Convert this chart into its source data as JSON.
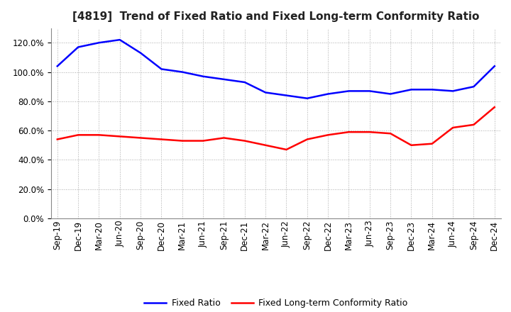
{
  "title": "[4819]  Trend of Fixed Ratio and Fixed Long-term Conformity Ratio",
  "x_labels": [
    "Sep-19",
    "Dec-19",
    "Mar-20",
    "Jun-20",
    "Sep-20",
    "Dec-20",
    "Mar-21",
    "Jun-21",
    "Sep-21",
    "Dec-21",
    "Mar-22",
    "Jun-22",
    "Sep-22",
    "Dec-22",
    "Mar-23",
    "Jun-23",
    "Sep-23",
    "Dec-23",
    "Mar-24",
    "Jun-24",
    "Sep-24",
    "Dec-24"
  ],
  "fixed_ratio": [
    1.04,
    1.17,
    1.2,
    1.22,
    1.13,
    1.02,
    1.0,
    0.97,
    0.95,
    0.93,
    0.86,
    0.84,
    0.82,
    0.85,
    0.87,
    0.87,
    0.85,
    0.88,
    0.88,
    0.87,
    0.9,
    1.04
  ],
  "fixed_lt_ratio": [
    0.54,
    0.57,
    0.57,
    0.56,
    0.55,
    0.54,
    0.53,
    0.53,
    0.55,
    0.53,
    0.5,
    0.47,
    0.54,
    0.57,
    0.59,
    0.59,
    0.58,
    0.5,
    0.51,
    0.62,
    0.64,
    0.76
  ],
  "fixed_ratio_color": "#0000FF",
  "fixed_lt_ratio_color": "#FF0000",
  "ylim": [
    0.0,
    1.3
  ],
  "yticks": [
    0.0,
    0.2,
    0.4,
    0.6,
    0.8,
    1.0,
    1.2
  ],
  "background_color": "#FFFFFF",
  "plot_bg_color": "#FFFFFF",
  "grid_color": "#AAAAAA",
  "legend_fixed_ratio": "Fixed Ratio",
  "legend_fixed_lt_ratio": "Fixed Long-term Conformity Ratio",
  "line_width": 1.8,
  "title_fontsize": 11,
  "tick_fontsize": 8.5,
  "legend_fontsize": 9
}
